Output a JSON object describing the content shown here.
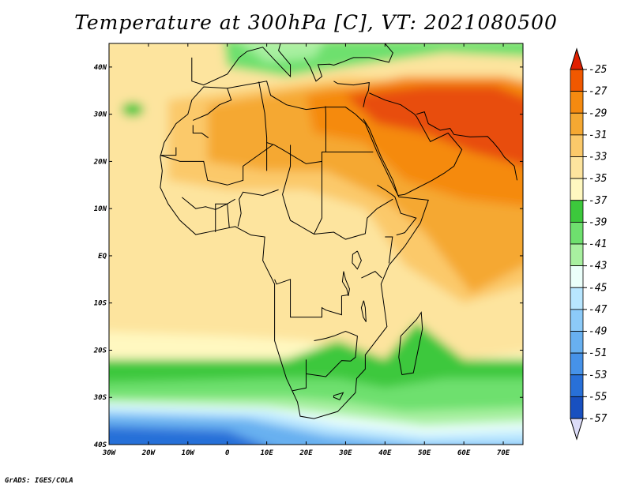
{
  "title": "Temperature at 300hPa [C], VT: 2021080500",
  "credit": "GrADS: IGES/COLA",
  "map": {
    "lon_range": [
      -30,
      75
    ],
    "lat_range": [
      -40,
      45
    ],
    "x_ticks": [
      {
        "lon": -30,
        "label": "30W"
      },
      {
        "lon": -20,
        "label": "20W"
      },
      {
        "lon": -10,
        "label": "10W"
      },
      {
        "lon": 0,
        "label": "0"
      },
      {
        "lon": 10,
        "label": "10E"
      },
      {
        "lon": 20,
        "label": "20E"
      },
      {
        "lon": 30,
        "label": "30E"
      },
      {
        "lon": 40,
        "label": "40E"
      },
      {
        "lon": 50,
        "label": "50E"
      },
      {
        "lon": 60,
        "label": "60E"
      },
      {
        "lon": 70,
        "label": "70E"
      }
    ],
    "y_ticks": [
      {
        "lat": 40,
        "label": "40N"
      },
      {
        "lat": 30,
        "label": "30N"
      },
      {
        "lat": 20,
        "label": "20N"
      },
      {
        "lat": 10,
        "label": "10N"
      },
      {
        "lat": 0,
        "label": "EQ"
      },
      {
        "lat": -10,
        "label": "10S"
      },
      {
        "lat": -20,
        "label": "20S"
      },
      {
        "lat": -30,
        "label": "30S"
      },
      {
        "lat": -40,
        "label": "40S"
      }
    ]
  },
  "colorbar": {
    "levels": [
      {
        "label": "-25",
        "value": -25
      },
      {
        "label": "-27",
        "value": -27
      },
      {
        "label": "-29",
        "value": -29
      },
      {
        "label": "-31",
        "value": -31
      },
      {
        "label": "-33",
        "value": -33
      },
      {
        "label": "-35",
        "value": -35
      },
      {
        "label": "-37",
        "value": -37
      },
      {
        "label": "-39",
        "value": -39
      },
      {
        "label": "-41",
        "value": -41
      },
      {
        "label": "-43",
        "value": -43
      },
      {
        "label": "-45",
        "value": -45
      },
      {
        "label": "-47",
        "value": -47
      },
      {
        "label": "-49",
        "value": -49
      },
      {
        "label": "-51",
        "value": -51
      },
      {
        "label": "-53",
        "value": -53
      },
      {
        "label": "-55",
        "value": -55
      },
      {
        "label": "-57",
        "value": -57
      }
    ],
    "colors": [
      "#e02000",
      "#f05800",
      "#f58a10",
      "#f5a832",
      "#fbc96a",
      "#fde49e",
      "#fff8c0",
      "#3cc83c",
      "#6ee06e",
      "#a8f0a0",
      "#ebfffa",
      "#b8e6ff",
      "#8ccaf8",
      "#68b0f0",
      "#4692e8",
      "#2870d8",
      "#1850c0",
      "#003090",
      "#0c1870",
      "#dcdcf8"
    ],
    "top_arrow_color": "#e02000",
    "bottom_arrow_color": "#dcdcf8"
  },
  "field_colors": {
    "hot": "#e84e10",
    "orange": "#f58a10",
    "light_orange": "#f5a832",
    "tan": "#fbc96a",
    "pale": "#fde49e",
    "cream": "#fff8c0",
    "green": "#3cc83c",
    "light_green": "#6ee06e",
    "pale_green": "#a8f0a0",
    "ice": "#ebfffa",
    "light_blue": "#b8e6ff",
    "mid_blue": "#68b0f0",
    "blue": "#2870d8",
    "coast": "#000000"
  }
}
